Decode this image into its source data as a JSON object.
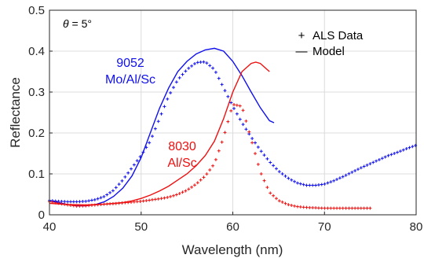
{
  "chart_data": {
    "type": "line",
    "xlabel": "Wavelength (nm)",
    "ylabel": "Reflectance",
    "xlim": [
      40,
      80
    ],
    "ylim": [
      0,
      0.5
    ],
    "xticks": [
      "40",
      "50",
      "60",
      "70",
      "80"
    ],
    "yticks": [
      "0",
      "0.1",
      "0.2",
      "0.3",
      "0.4",
      "0.5"
    ],
    "grid": true,
    "legend_position": "top-right",
    "legend": [
      {
        "symbol": "+",
        "label": "ALS Data"
      },
      {
        "symbol": "—",
        "label": "Model"
      }
    ],
    "annotations": {
      "theta_prefix": "θ",
      "theta_suffix": " = 5°",
      "sample_9052_id": "9052",
      "sample_9052_material": "Mo/Al/Sc",
      "sample_8030_id": "8030",
      "sample_8030_material": "Al/Sc"
    },
    "colors": {
      "blue": "#1010ee",
      "red": "#ee1010"
    },
    "series": [
      {
        "sample": "9052",
        "kind": "data",
        "color": "#1010ee",
        "x": [
          40,
          41,
          42,
          43,
          44,
          45,
          46,
          47,
          48,
          49,
          50,
          51,
          52,
          53,
          54,
          55,
          56,
          57,
          58,
          59,
          60,
          61,
          62,
          63,
          64,
          65,
          66,
          67,
          68,
          69,
          70,
          71,
          72,
          73,
          74,
          75,
          76,
          77,
          78,
          79,
          80
        ],
        "y": [
          0.035,
          0.033,
          0.032,
          0.032,
          0.033,
          0.037,
          0.045,
          0.06,
          0.085,
          0.115,
          0.145,
          0.18,
          0.235,
          0.29,
          0.33,
          0.355,
          0.372,
          0.374,
          0.355,
          0.31,
          0.265,
          0.225,
          0.19,
          0.158,
          0.13,
          0.107,
          0.09,
          0.078,
          0.072,
          0.072,
          0.075,
          0.083,
          0.093,
          0.104,
          0.115,
          0.125,
          0.135,
          0.145,
          0.153,
          0.162,
          0.17
        ]
      },
      {
        "sample": "9052",
        "kind": "model",
        "color": "#1010ee",
        "x": [
          40,
          41,
          42,
          43,
          44,
          45,
          46,
          47,
          48,
          49,
          50,
          51,
          52,
          53,
          54,
          55,
          56,
          57,
          58,
          59,
          60,
          61,
          62,
          63,
          64,
          64.5
        ],
        "y": [
          0.035,
          0.03,
          0.025,
          0.022,
          0.022,
          0.025,
          0.032,
          0.045,
          0.065,
          0.095,
          0.14,
          0.2,
          0.26,
          0.31,
          0.35,
          0.375,
          0.393,
          0.403,
          0.407,
          0.4,
          0.375,
          0.34,
          0.3,
          0.262,
          0.23,
          0.225
        ]
      },
      {
        "sample": "8030",
        "kind": "data",
        "color": "#ee1010",
        "x": [
          40,
          41,
          42,
          43,
          44,
          45,
          46,
          47,
          48,
          49,
          50,
          51,
          52,
          53,
          54,
          55,
          56,
          57,
          58,
          59,
          60,
          61,
          62,
          63,
          64,
          65,
          66,
          67,
          68,
          69,
          70,
          71,
          72,
          73,
          74,
          75
        ],
        "y": [
          0.032,
          0.028,
          0.024,
          0.021,
          0.022,
          0.024,
          0.026,
          0.027,
          0.029,
          0.031,
          0.033,
          0.036,
          0.039,
          0.043,
          0.05,
          0.06,
          0.075,
          0.095,
          0.125,
          0.19,
          0.27,
          0.265,
          0.185,
          0.105,
          0.055,
          0.035,
          0.025,
          0.02,
          0.018,
          0.017,
          0.016,
          0.016,
          0.016,
          0.016,
          0.016,
          0.016
        ]
      },
      {
        "sample": "8030",
        "kind": "model",
        "color": "#ee1010",
        "x": [
          40,
          42,
          44,
          46,
          48,
          49,
          50,
          51,
          52,
          53,
          54,
          55,
          56,
          57,
          58,
          59,
          60,
          61,
          62,
          62.5,
          63,
          64
        ],
        "y": [
          0.028,
          0.025,
          0.024,
          0.026,
          0.03,
          0.034,
          0.04,
          0.048,
          0.058,
          0.07,
          0.085,
          0.1,
          0.12,
          0.145,
          0.18,
          0.235,
          0.3,
          0.35,
          0.37,
          0.373,
          0.37,
          0.35
        ]
      }
    ]
  }
}
